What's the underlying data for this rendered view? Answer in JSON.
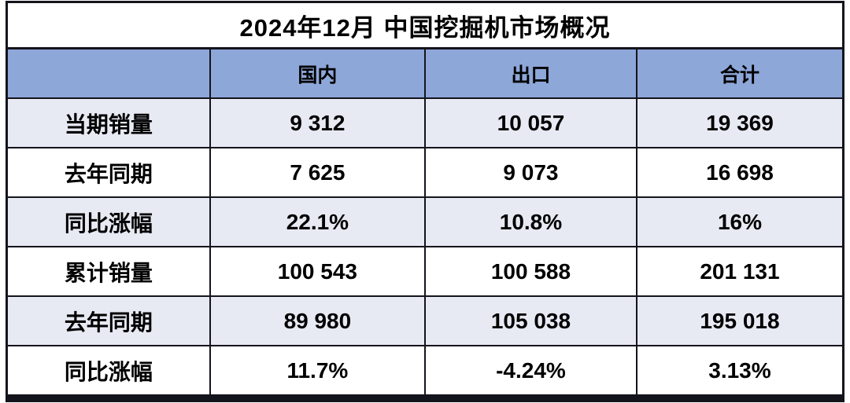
{
  "chart_data": {
    "type": "table",
    "title": "2024年12月 中国挖掘机市场概况",
    "columns": [
      "",
      "国内",
      "出口",
      "合计"
    ],
    "rows": [
      [
        "当期销量",
        "9 312",
        "10 057",
        "19 369"
      ],
      [
        "去年同期",
        "7 625",
        "9 073",
        "16 698"
      ],
      [
        "同比涨幅",
        "22.1%",
        "10.8%",
        "16%"
      ],
      [
        "累计销量",
        "100 543",
        "100 588",
        "201 131"
      ],
      [
        "去年同期",
        "89 980",
        "105 038",
        "195 018"
      ],
      [
        "同比涨幅",
        "11.7%",
        "-4.24%",
        "3.13%"
      ]
    ],
    "layout": {
      "header_bg": "#8EA7D9",
      "row_alt_bg": "#E7E9F3",
      "row_bg": "#FFFFFF",
      "border_color": "#14141C",
      "text_color": "#000000",
      "number_format": "space thousands separator"
    }
  }
}
